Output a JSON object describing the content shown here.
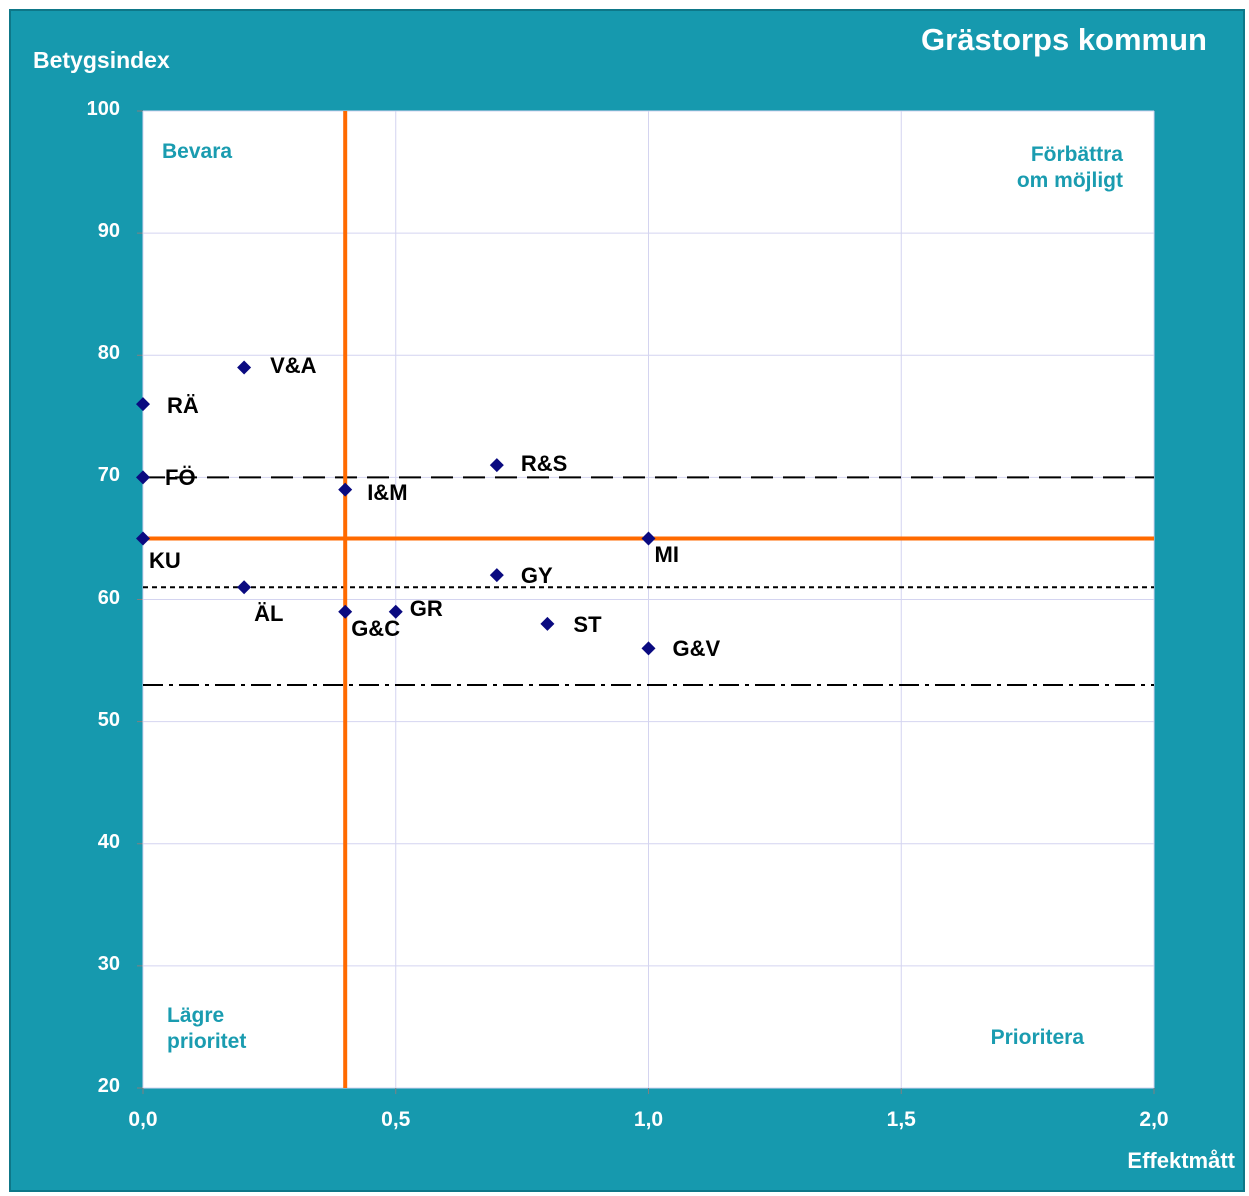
{
  "chart_data": {
    "type": "scatter",
    "title": "Grästorps kommun",
    "xlabel": "Effektmått",
    "ylabel": "Betygsindex",
    "xlim": [
      0,
      2
    ],
    "ylim": [
      20,
      100
    ],
    "x_ticks": [
      "0,0",
      "0,5",
      "1,0",
      "1,5",
      "2,0"
    ],
    "y_ticks": [
      "20",
      "30",
      "40",
      "50",
      "60",
      "70",
      "80",
      "90",
      "100"
    ],
    "grid": true,
    "quadrant_labels": {
      "top_left": "Bevara",
      "top_right": "Förbättra om möjligt",
      "top_right_lines": [
        "Förbättra",
        "om möjligt"
      ],
      "bottom_left": "Lägre prioritet",
      "bottom_left_lines": [
        "Lägre",
        "prioritet"
      ],
      "bottom_right": "Prioritera"
    },
    "points": [
      {
        "label": "V&A",
        "x": 0.2,
        "y": 79
      },
      {
        "label": "RÄ",
        "x": 0.0,
        "y": 76
      },
      {
        "label": "FÖ",
        "x": 0.0,
        "y": 70
      },
      {
        "label": "KU",
        "x": 0.0,
        "y": 65
      },
      {
        "label": "ÄL",
        "x": 0.2,
        "y": 61
      },
      {
        "label": "I&M",
        "x": 0.4,
        "y": 69
      },
      {
        "label": "G&C",
        "x": 0.4,
        "y": 59
      },
      {
        "label": "GR",
        "x": 0.5,
        "y": 59
      },
      {
        "label": "R&S",
        "x": 0.7,
        "y": 71
      },
      {
        "label": "GY",
        "x": 0.7,
        "y": 62
      },
      {
        "label": "ST",
        "x": 0.8,
        "y": 58
      },
      {
        "label": "MI",
        "x": 1.0,
        "y": 65
      },
      {
        "label": "G&V",
        "x": 1.0,
        "y": 56
      }
    ],
    "reference_lines": {
      "vertical": [
        {
          "x": 0.4,
          "color": "#ff6a00",
          "style": "solid"
        }
      ],
      "horizontal": [
        {
          "y": 65,
          "color": "#ff6a00",
          "style": "solid"
        },
        {
          "y": 70,
          "color": "#000000",
          "style": "long-dash"
        },
        {
          "y": 61,
          "color": "#000000",
          "style": "short-dash"
        },
        {
          "y": 53,
          "color": "#000000",
          "style": "dash-dot"
        }
      ]
    },
    "colors": {
      "background": "#1699ae",
      "plot_area": "#ffffff",
      "marker": "#0a0a80",
      "quadrant_text": "#1a9cb0",
      "axis_text": "#ffffff"
    }
  }
}
